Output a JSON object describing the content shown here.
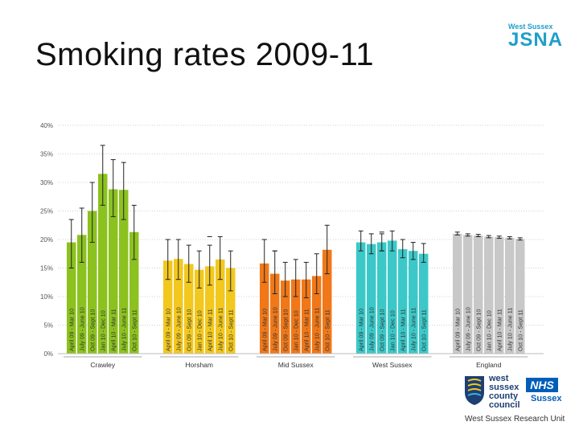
{
  "slide": {
    "title": "Smoking rates 2009-11"
  },
  "logo": {
    "small_text": "West Sussex",
    "big_text": "JSNA"
  },
  "footer": {
    "council_lines": [
      "west",
      "sussex",
      "county",
      "council"
    ],
    "nhs_badge": "NHS",
    "nhs_region": "Sussex",
    "research_unit": "West Sussex Research Unit"
  },
  "chart_data": {
    "type": "bar",
    "title": "",
    "ylim": [
      0,
      40
    ],
    "yticks": [
      "0%",
      "5%",
      "10%",
      "15%",
      "20%",
      "25%",
      "30%",
      "35%",
      "40%"
    ],
    "period_labels": [
      "April 09 - Mar 10",
      "July 09 - June 10",
      "Oct 09 - Sept 10",
      "Jan 10 - Dec 10",
      "April 10 - Mar 11",
      "July 10 - June 11",
      "Oct 10 - Sept 11"
    ],
    "groups": [
      {
        "name": "Crawley",
        "color": "#8cc21f",
        "values": [
          19.5,
          20.8,
          25.0,
          31.5,
          28.8,
          28.7,
          21.3
        ],
        "lower": [
          15.0,
          16.0,
          19.5,
          26.0,
          24.0,
          23.5,
          16.5
        ],
        "upper": [
          23.5,
          25.5,
          30.0,
          36.5,
          34.0,
          33.5,
          26.0
        ]
      },
      {
        "name": "Horsham",
        "color": "#f2c81e",
        "values": [
          16.3,
          16.6,
          15.7,
          14.7,
          15.3,
          16.5,
          15.0
        ],
        "lower": [
          13.0,
          13.0,
          12.5,
          11.5,
          12.0,
          13.0,
          11.0
        ],
        "upper": [
          20.0,
          20.0,
          19.0,
          18.0,
          19.0,
          20.5,
          18.0
        ]
      },
      {
        "name": "Mid Sussex",
        "color": "#f07819",
        "values": [
          15.8,
          14.0,
          12.8,
          13.0,
          13.0,
          13.6,
          18.2
        ],
        "lower": [
          12.5,
          10.5,
          10.0,
          10.0,
          9.8,
          10.5,
          14.0
        ],
        "upper": [
          20.0,
          18.0,
          16.0,
          16.5,
          16.0,
          17.5,
          22.5
        ]
      },
      {
        "name": "West Sussex",
        "color": "#3cc8c8",
        "values": [
          19.5,
          19.2,
          19.5,
          19.8,
          18.3,
          18.0,
          17.5
        ],
        "lower": [
          18.0,
          17.5,
          18.0,
          18.0,
          16.8,
          16.5,
          16.0
        ],
        "upper": [
          21.5,
          21.0,
          21.0,
          21.5,
          20.0,
          19.5,
          19.3
        ]
      },
      {
        "name": "England",
        "color": "#c8c8c8",
        "values": [
          21.0,
          20.8,
          20.7,
          20.5,
          20.4,
          20.3,
          20.1
        ],
        "lower": [
          20.8,
          20.6,
          20.5,
          20.3,
          20.2,
          20.1,
          19.9
        ],
        "upper": [
          21.3,
          21.0,
          20.9,
          20.7,
          20.6,
          20.5,
          20.3
        ]
      }
    ],
    "stray_marks": [
      {
        "group": "Horsham",
        "value": 20.0
      },
      {
        "group": "Horsham",
        "value": 20.5
      },
      {
        "group": "Mid Sussex",
        "value": 20.0
      },
      {
        "group": "Mid Sussex",
        "value": 18.0
      },
      {
        "group": "West Sussex",
        "value": 21.3
      },
      {
        "group": "West Sussex",
        "value": 18.0
      }
    ]
  }
}
